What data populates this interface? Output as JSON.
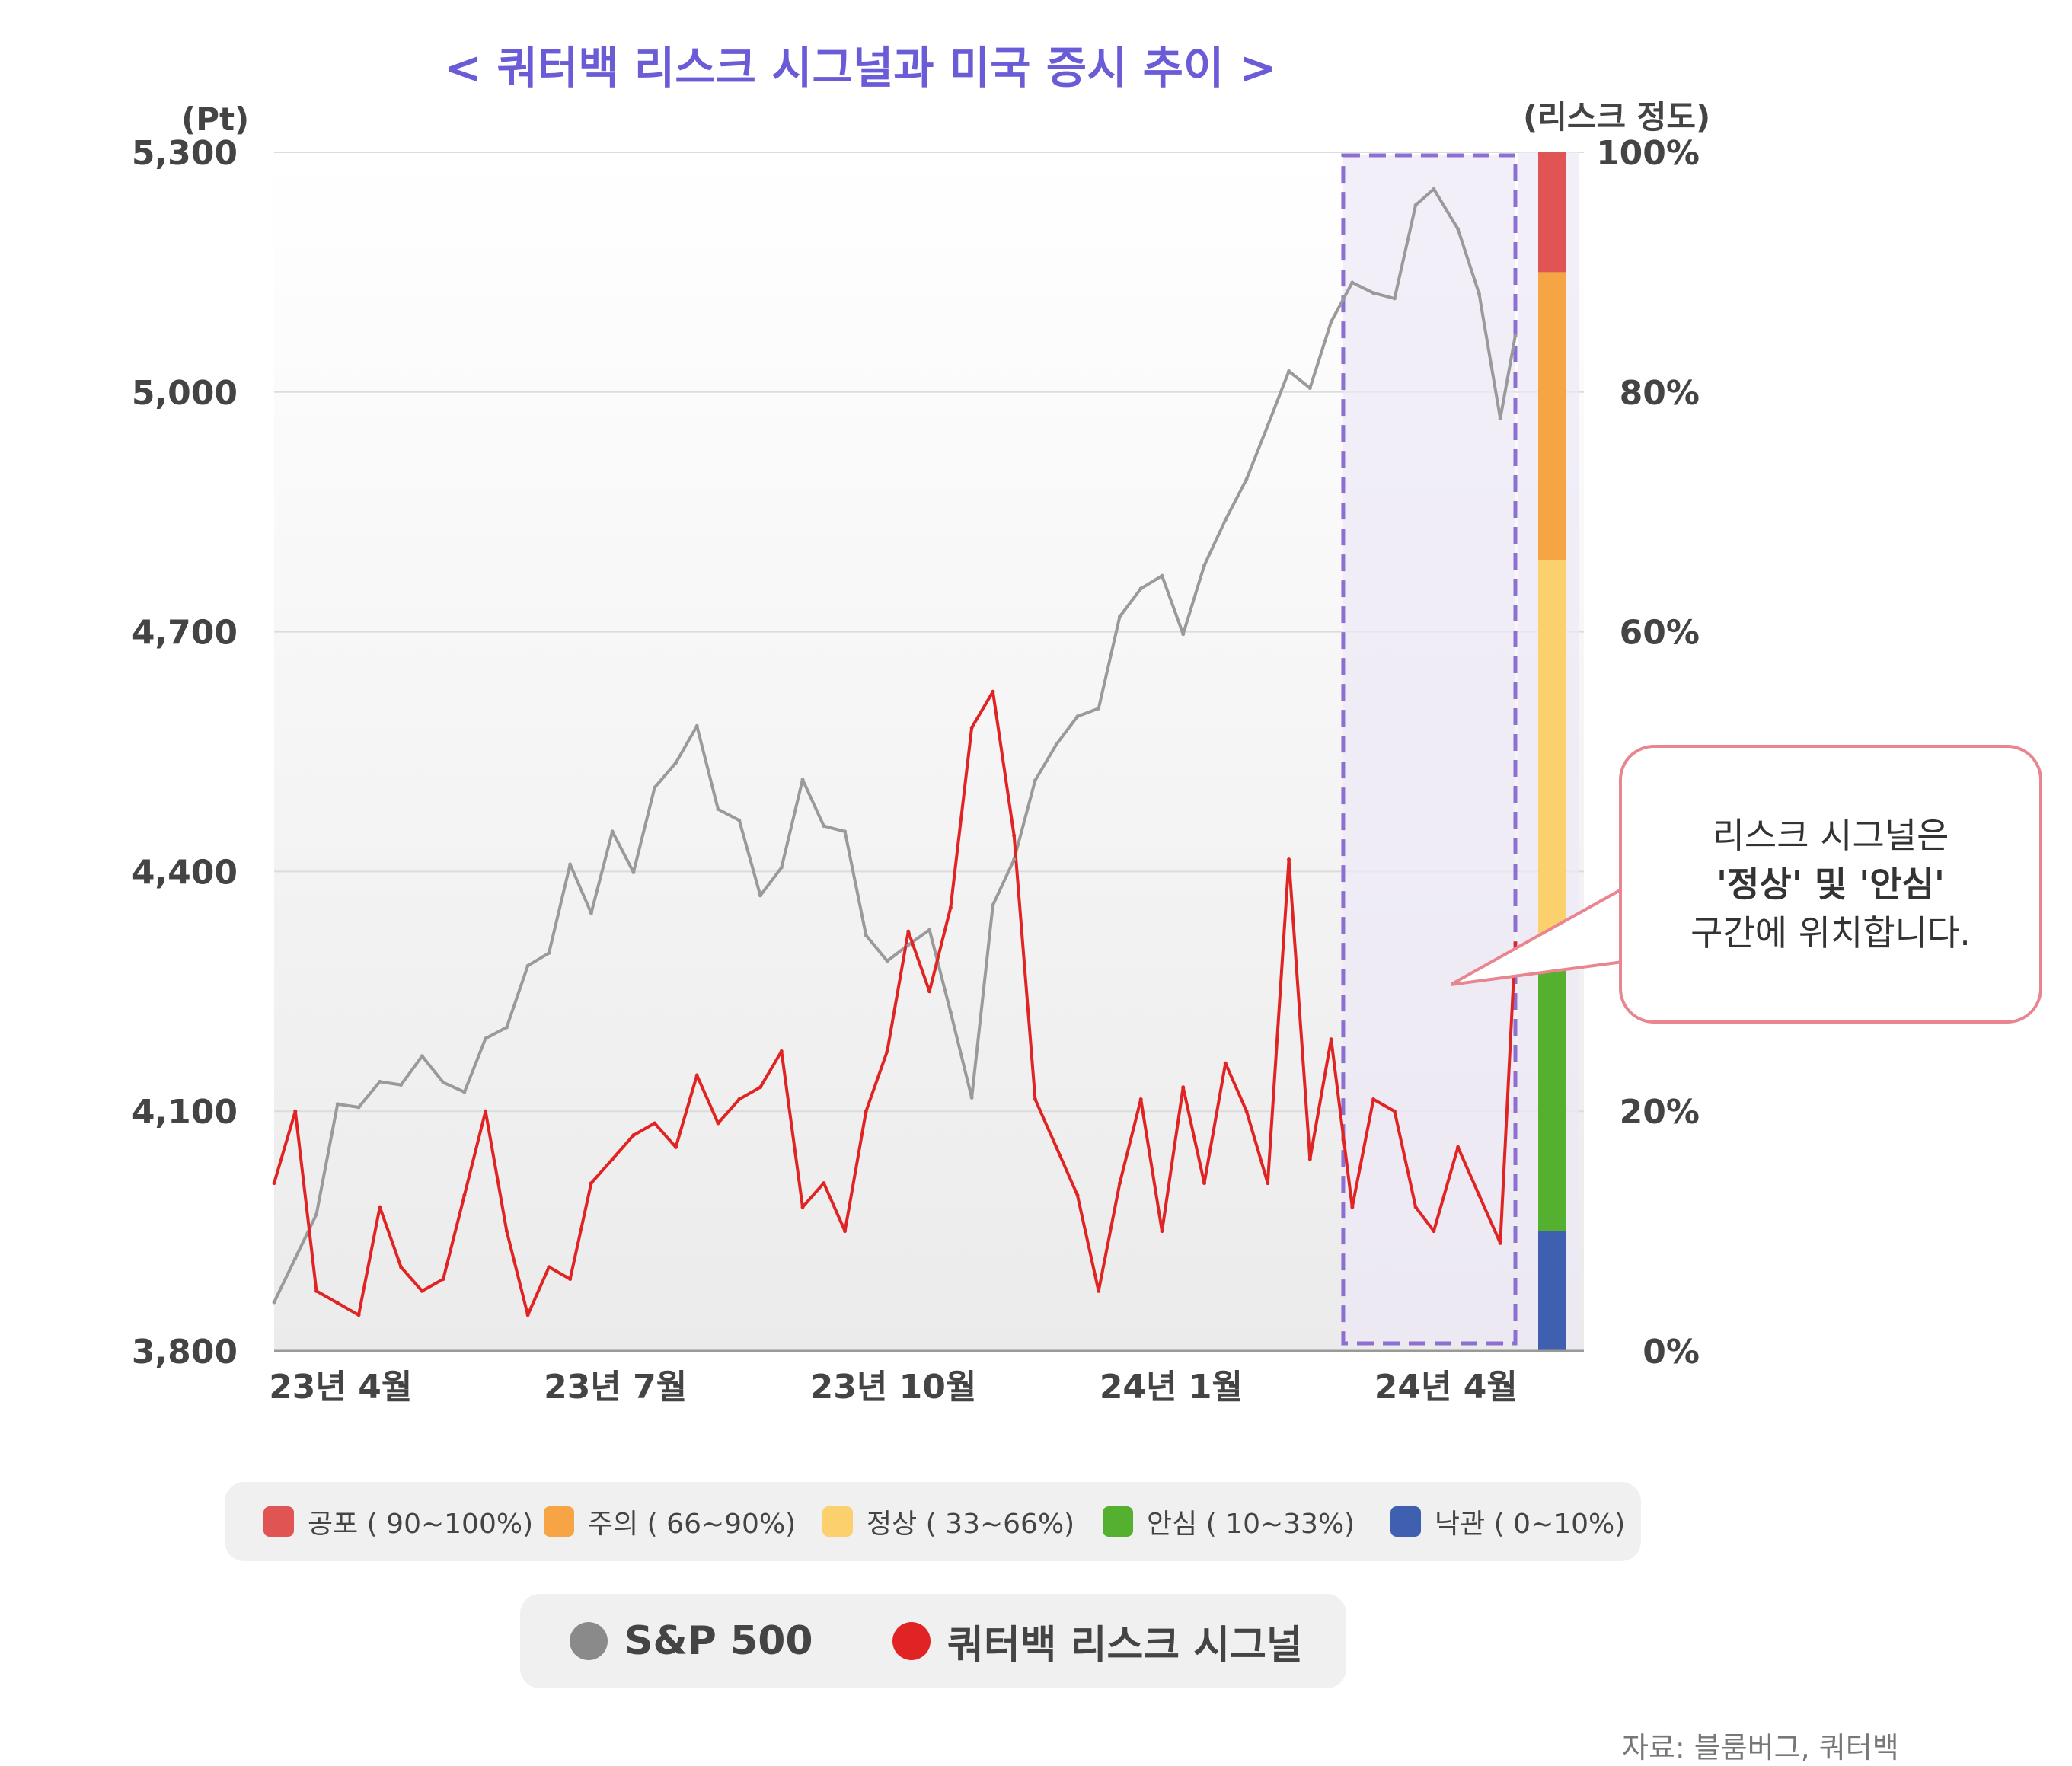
{
  "title": "< 쿼터백 리스크 시그널과 미국 증시 추이 >",
  "y_unit_left": "(Pt)",
  "y_unit_right": "(리스크 정도)",
  "callout": {
    "line1": "리스크 시그널은",
    "line2": "'정상' 및 '안심'",
    "line3": "구간에 위치합니다."
  },
  "risk_legend": [
    {
      "label": "공포 ( 90~100%)",
      "color": "#e05454"
    },
    {
      "label": "주의 ( 66~90%)",
      "color": "#f6a444"
    },
    {
      "label": "정상 ( 33~66%)",
      "color": "#fdd06e"
    },
    {
      "label": "안심 ( 10~33%)",
      "color": "#55b030"
    },
    {
      "label": "낙관 ( 0~10%)",
      "color": "#3f5fb0"
    }
  ],
  "series_legend": [
    {
      "label": "S&P 500",
      "color": "#8a8a8a"
    },
    {
      "label": "쿼터백 리스크 시그널",
      "color": "#e02424"
    }
  ],
  "source": "자료: 블룸버그, 쿼터백",
  "chart_data": {
    "type": "line",
    "title": "< 쿼터백 리스크 시그널과 미국 증시 추이 >",
    "xlabel": "",
    "ylabel": "(Pt)",
    "y2label": "(리스크 정도)",
    "ylim": [
      3800,
      5300
    ],
    "y_ticks": [
      3800,
      4100,
      4400,
      4700,
      5000,
      5300
    ],
    "y_tick_labels": [
      "3,800",
      "4,100",
      "4,400",
      "4,700",
      "5,000",
      "5,300"
    ],
    "y2lim": [
      0,
      100
    ],
    "y2_ticks": [
      0,
      20,
      60,
      80,
      100
    ],
    "y2_tick_labels": [
      "0%",
      "20%",
      "60%",
      "80%",
      "100%"
    ],
    "x_tick_labels": [
      "23년  4월",
      "23년 7월",
      "23년  10월",
      "24년 1월",
      "24년 4월"
    ],
    "x_tick_dates": [
      "2023-04-01",
      "2023-07-01",
      "2023-10-01",
      "2024-01-01",
      "2024-04-01"
    ],
    "x_range": [
      "2023-03-10",
      "2024-04-24"
    ],
    "grid": true,
    "risk_bands": [
      {
        "name": "낙관",
        "from": 0,
        "to": 10,
        "color": "#3f5fb0"
      },
      {
        "name": "안심",
        "from": 10,
        "to": 33,
        "color": "#55b030"
      },
      {
        "name": "정상",
        "from": 33,
        "to": 66,
        "color": "#fdd06e"
      },
      {
        "name": "주의",
        "from": 66,
        "to": 90,
        "color": "#f6a444"
      },
      {
        "name": "공포",
        "from": 90,
        "to": 100,
        "color": "#e05454"
      }
    ],
    "highlight_range": [
      "2024-02-27",
      "2024-04-24"
    ],
    "series": [
      {
        "name": "S&P 500",
        "axis": "left",
        "color": "#9a9a9a",
        "x": [
          "2023-03-10",
          "2023-03-17",
          "2023-03-24",
          "2023-03-31",
          "2023-04-07",
          "2023-04-14",
          "2023-04-21",
          "2023-04-28",
          "2023-05-05",
          "2023-05-12",
          "2023-05-19",
          "2023-05-26",
          "2023-06-02",
          "2023-06-09",
          "2023-06-16",
          "2023-06-23",
          "2023-06-30",
          "2023-07-07",
          "2023-07-14",
          "2023-07-21",
          "2023-07-28",
          "2023-08-04",
          "2023-08-11",
          "2023-08-18",
          "2023-08-25",
          "2023-09-01",
          "2023-09-08",
          "2023-09-15",
          "2023-09-22",
          "2023-09-29",
          "2023-10-06",
          "2023-10-13",
          "2023-10-20",
          "2023-10-27",
          "2023-11-03",
          "2023-11-10",
          "2023-11-17",
          "2023-11-24",
          "2023-12-01",
          "2023-12-08",
          "2023-12-15",
          "2023-12-22",
          "2023-12-29",
          "2024-01-05",
          "2024-01-12",
          "2024-01-19",
          "2024-01-26",
          "2024-02-02",
          "2024-02-09",
          "2024-02-16",
          "2024-02-23",
          "2024-03-01",
          "2024-03-08",
          "2024-03-15",
          "2024-03-22",
          "2024-03-28",
          "2024-04-05",
          "2024-04-12",
          "2024-04-19",
          "2024-04-24"
        ],
        "values": [
          3861,
          3916,
          3971,
          4109,
          4105,
          4137,
          4133,
          4169,
          4136,
          4124,
          4191,
          4205,
          4282,
          4298,
          4409,
          4348,
          4450,
          4399,
          4505,
          4536,
          4582,
          4478,
          4464,
          4370,
          4405,
          4515,
          4457,
          4450,
          4320,
          4288,
          4308,
          4327,
          4224,
          4117,
          4358,
          4415,
          4514,
          4559,
          4594,
          4604,
          4719,
          4754,
          4770,
          4697,
          4783,
          4840,
          4891,
          4958,
          5026,
          5005,
          5088,
          5137,
          5124,
          5117,
          5234,
          5254,
          5204,
          5123,
          4967,
          5071
        ]
      },
      {
        "name": "쿼터백 리스크 시그널",
        "axis": "right",
        "color": "#e02424",
        "x": [
          "2023-03-10",
          "2023-03-17",
          "2023-03-24",
          "2023-03-31",
          "2023-04-07",
          "2023-04-14",
          "2023-04-21",
          "2023-04-28",
          "2023-05-05",
          "2023-05-12",
          "2023-05-19",
          "2023-05-26",
          "2023-06-02",
          "2023-06-09",
          "2023-06-16",
          "2023-06-23",
          "2023-06-30",
          "2023-07-07",
          "2023-07-14",
          "2023-07-21",
          "2023-07-28",
          "2023-08-04",
          "2023-08-11",
          "2023-08-18",
          "2023-08-25",
          "2023-09-01",
          "2023-09-08",
          "2023-09-15",
          "2023-09-22",
          "2023-09-29",
          "2023-10-06",
          "2023-10-13",
          "2023-10-20",
          "2023-10-27",
          "2023-11-03",
          "2023-11-10",
          "2023-11-17",
          "2023-11-24",
          "2023-12-01",
          "2023-12-08",
          "2023-12-15",
          "2023-12-22",
          "2023-12-29",
          "2024-01-05",
          "2024-01-12",
          "2024-01-19",
          "2024-01-26",
          "2024-02-02",
          "2024-02-09",
          "2024-02-16",
          "2024-02-23",
          "2024-03-01",
          "2024-03-08",
          "2024-03-15",
          "2024-03-22",
          "2024-03-28",
          "2024-04-05",
          "2024-04-12",
          "2024-04-19",
          "2024-04-24"
        ],
        "values": [
          14,
          20,
          5,
          4,
          3,
          12,
          7,
          5,
          6,
          13,
          20,
          10,
          3,
          7,
          6,
          14,
          16,
          18,
          19,
          17,
          23,
          19,
          21,
          22,
          25,
          12,
          14,
          10,
          20,
          25,
          35,
          30,
          37,
          52,
          55,
          43,
          21,
          17,
          13,
          5,
          14,
          21,
          10,
          22,
          14,
          24,
          20,
          14,
          41,
          16,
          26,
          12,
          21,
          20,
          12,
          10,
          17,
          13,
          9,
          34
        ]
      }
    ]
  }
}
